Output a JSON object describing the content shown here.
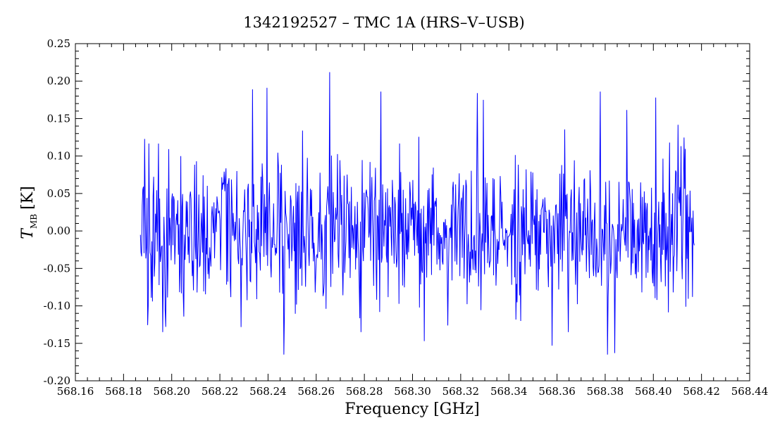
{
  "chart_data": {
    "type": "line",
    "title": "1342192527 – TMC 1A (HRS–V–USB)",
    "xlabel": "Frequency [GHz]",
    "ylabel": {
      "main": "T",
      "sub": "MB",
      "unit": "[K]"
    },
    "xlim": [
      568.16,
      568.44
    ],
    "ylim": [
      -0.2,
      0.25
    ],
    "x_ticks": [
      "568.16",
      "568.18",
      "568.20",
      "568.22",
      "568.24",
      "568.26",
      "568.28",
      "568.30",
      "568.32",
      "568.34",
      "568.36",
      "568.38",
      "568.40",
      "568.42",
      "568.44"
    ],
    "y_ticks": [
      "-0.20",
      "-0.15",
      "-0.10",
      "-0.05",
      "0.00",
      "0.05",
      "0.10",
      "0.15",
      "0.20",
      "0.25"
    ],
    "grid": false,
    "series": [
      {
        "color": "#0000ff",
        "x_range": [
          568.187,
          568.417
        ],
        "points": 920,
        "noise_sigma": 0.05,
        "baseline": 0.0,
        "extremes": [
          {
            "x": 568.2655,
            "y": 0.212
          },
          {
            "x": 568.2395,
            "y": 0.191
          },
          {
            "x": 568.2335,
            "y": 0.189
          },
          {
            "x": 568.2868,
            "y": 0.186
          },
          {
            "x": 568.378,
            "y": 0.186
          },
          {
            "x": 568.3268,
            "y": 0.184
          },
          {
            "x": 568.401,
            "y": 0.178
          },
          {
            "x": 568.2466,
            "y": -0.165
          },
          {
            "x": 568.381,
            "y": -0.165
          },
          {
            "x": 568.384,
            "y": -0.163
          },
          {
            "x": 568.305,
            "y": -0.147
          },
          {
            "x": 568.358,
            "y": -0.153
          },
          {
            "x": 568.1975,
            "y": -0.128
          }
        ]
      }
    ]
  }
}
